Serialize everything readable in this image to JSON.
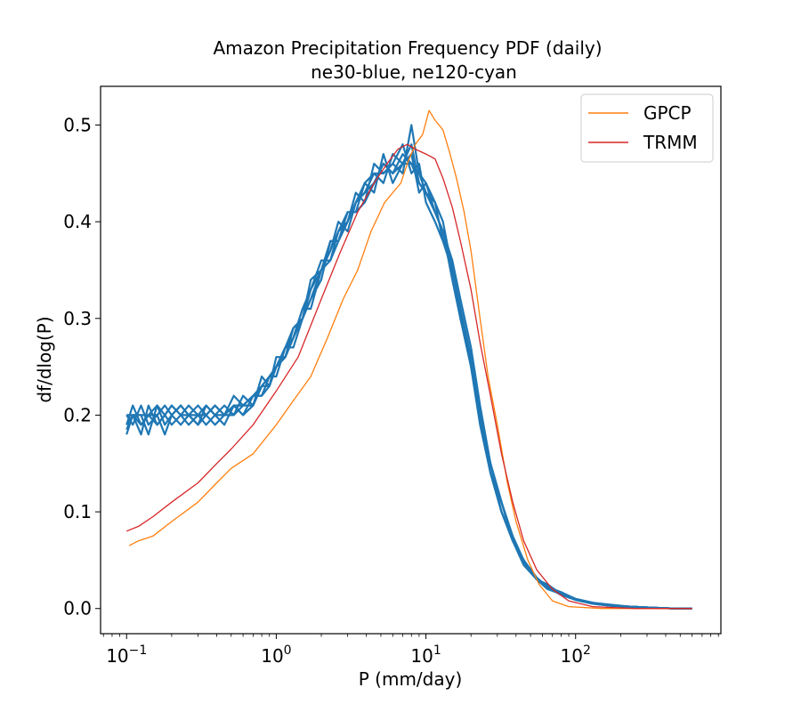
{
  "chart_data": {
    "type": "line",
    "title": "Amazon Precipitation Frequency PDF (daily)",
    "subtitle": "ne30-blue, ne120-cyan",
    "xlabel": "P (mm/day)",
    "ylabel": "df/dlog(P)",
    "xscale": "log",
    "xlim": [
      0.067,
      935
    ],
    "ylim": [
      -0.026,
      0.54
    ],
    "grid": false,
    "legend_position": "top-right",
    "x_ticks": [
      {
        "value": 0.1,
        "base": "10",
        "exp": "−1"
      },
      {
        "value": 1,
        "base": "10",
        "exp": "0"
      },
      {
        "value": 10,
        "base": "10",
        "exp": "1"
      },
      {
        "value": 100,
        "base": "10",
        "exp": "2"
      }
    ],
    "y_ticks": [
      {
        "value": 0.0,
        "label": "0.0"
      },
      {
        "value": 0.1,
        "label": "0.1"
      },
      {
        "value": 0.2,
        "label": "0.2"
      },
      {
        "value": 0.3,
        "label": "0.3"
      },
      {
        "value": 0.4,
        "label": "0.4"
      },
      {
        "value": 0.5,
        "label": "0.5"
      }
    ],
    "legend": [
      {
        "name": "GPCP",
        "color": "#ff7f0e"
      },
      {
        "name": "TRMM",
        "color": "#d62728"
      }
    ],
    "series": [
      {
        "name": "GPCP",
        "color": "#ff7f0e",
        "in_legend": true,
        "x": [
          0.104,
          0.12,
          0.15,
          0.2,
          0.3,
          0.4,
          0.5,
          0.7,
          1.0,
          1.3,
          1.7,
          2.2,
          2.8,
          3.5,
          4.3,
          5.3,
          6.0,
          6.8,
          7.5,
          8.5,
          9.5,
          10.5,
          11.5,
          13,
          14.5,
          16,
          18,
          20,
          23,
          26,
          30,
          35,
          40,
          48,
          57,
          70,
          90,
          150,
          300,
          600
        ],
        "y": [
          0.065,
          0.07,
          0.075,
          0.09,
          0.11,
          0.13,
          0.145,
          0.16,
          0.19,
          0.215,
          0.24,
          0.28,
          0.32,
          0.35,
          0.39,
          0.42,
          0.43,
          0.44,
          0.46,
          0.48,
          0.49,
          0.515,
          0.505,
          0.495,
          0.47,
          0.445,
          0.41,
          0.37,
          0.3,
          0.24,
          0.19,
          0.13,
          0.09,
          0.05,
          0.025,
          0.008,
          0.002,
          0.0,
          0.0,
          0.0
        ]
      },
      {
        "name": "TRMM",
        "color": "#d62728",
        "in_legend": true,
        "x": [
          0.1,
          0.12,
          0.15,
          0.2,
          0.3,
          0.4,
          0.5,
          0.7,
          1.0,
          1.4,
          2.0,
          2.7,
          3.5,
          4.5,
          5.5,
          6.5,
          7.5,
          8.5,
          10,
          11.5,
          13,
          15,
          17,
          20,
          23,
          27,
          32,
          38,
          45,
          55,
          70,
          90,
          130,
          250,
          600
        ],
        "y": [
          0.08,
          0.085,
          0.095,
          0.11,
          0.13,
          0.15,
          0.165,
          0.19,
          0.225,
          0.26,
          0.32,
          0.37,
          0.41,
          0.44,
          0.46,
          0.475,
          0.48,
          0.475,
          0.47,
          0.465,
          0.445,
          0.415,
          0.38,
          0.33,
          0.275,
          0.22,
          0.16,
          0.11,
          0.07,
          0.04,
          0.02,
          0.008,
          0.002,
          0.0,
          0.0
        ]
      }
    ],
    "ensemble": {
      "color": "#1f77b4",
      "x": [
        0.1,
        0.11,
        0.125,
        0.14,
        0.16,
        0.18,
        0.2,
        0.23,
        0.26,
        0.3,
        0.34,
        0.39,
        0.45,
        0.52,
        0.6,
        0.7,
        0.8,
        0.9,
        1.0,
        1.15,
        1.3,
        1.5,
        1.7,
        2.0,
        2.3,
        2.6,
        3.0,
        3.4,
        3.9,
        4.5,
        5.2,
        6.0,
        7.0,
        8.0,
        9.0,
        10.0,
        11.5,
        13,
        15,
        17,
        20,
        23,
        27,
        32,
        38,
        45,
        55,
        65,
        80,
        100,
        130,
        170,
        230,
        320,
        450,
        600
      ],
      "members": [
        [
          0.19,
          0.21,
          0.19,
          0.2,
          0.21,
          0.19,
          0.2,
          0.21,
          0.2,
          0.19,
          0.2,
          0.21,
          0.2,
          0.22,
          0.21,
          0.22,
          0.23,
          0.24,
          0.25,
          0.27,
          0.28,
          0.31,
          0.33,
          0.35,
          0.37,
          0.39,
          0.4,
          0.42,
          0.43,
          0.44,
          0.46,
          0.45,
          0.47,
          0.46,
          0.45,
          0.44,
          0.42,
          0.4,
          0.35,
          0.31,
          0.26,
          0.2,
          0.15,
          0.11,
          0.07,
          0.05,
          0.03,
          0.025,
          0.015,
          0.01,
          0.006,
          0.003,
          0.002,
          0.001,
          0.0,
          0.0
        ],
        [
          0.18,
          0.2,
          0.18,
          0.21,
          0.19,
          0.2,
          0.19,
          0.2,
          0.21,
          0.2,
          0.19,
          0.2,
          0.21,
          0.2,
          0.22,
          0.21,
          0.23,
          0.23,
          0.25,
          0.26,
          0.29,
          0.3,
          0.33,
          0.36,
          0.36,
          0.39,
          0.41,
          0.41,
          0.44,
          0.45,
          0.44,
          0.47,
          0.46,
          0.48,
          0.44,
          0.43,
          0.41,
          0.39,
          0.34,
          0.3,
          0.25,
          0.19,
          0.14,
          0.1,
          0.07,
          0.045,
          0.03,
          0.02,
          0.015,
          0.009,
          0.005,
          0.003,
          0.002,
          0.001,
          0.0,
          0.0
        ],
        [
          0.2,
          0.19,
          0.21,
          0.19,
          0.2,
          0.21,
          0.2,
          0.19,
          0.2,
          0.21,
          0.2,
          0.19,
          0.2,
          0.21,
          0.2,
          0.22,
          0.22,
          0.24,
          0.24,
          0.27,
          0.27,
          0.3,
          0.32,
          0.34,
          0.38,
          0.38,
          0.4,
          0.43,
          0.42,
          0.46,
          0.45,
          0.46,
          0.48,
          0.45,
          0.46,
          0.42,
          0.4,
          0.38,
          0.36,
          0.32,
          0.27,
          0.21,
          0.15,
          0.11,
          0.075,
          0.05,
          0.032,
          0.022,
          0.017,
          0.01,
          0.006,
          0.004,
          0.002,
          0.001,
          0.0,
          0.0
        ],
        [
          0.19,
          0.2,
          0.2,
          0.18,
          0.21,
          0.2,
          0.21,
          0.2,
          0.19,
          0.2,
          0.21,
          0.2,
          0.19,
          0.21,
          0.21,
          0.21,
          0.23,
          0.24,
          0.25,
          0.26,
          0.28,
          0.31,
          0.31,
          0.35,
          0.37,
          0.4,
          0.39,
          0.42,
          0.44,
          0.43,
          0.47,
          0.44,
          0.46,
          0.47,
          0.43,
          0.44,
          0.41,
          0.39,
          0.35,
          0.31,
          0.26,
          0.2,
          0.14,
          0.1,
          0.072,
          0.048,
          0.03,
          0.024,
          0.016,
          0.009,
          0.005,
          0.003,
          0.002,
          0.001,
          0.0,
          0.0
        ],
        [
          0.2,
          0.2,
          0.19,
          0.2,
          0.2,
          0.18,
          0.2,
          0.21,
          0.2,
          0.2,
          0.2,
          0.21,
          0.2,
          0.2,
          0.21,
          0.22,
          0.22,
          0.23,
          0.26,
          0.26,
          0.28,
          0.3,
          0.34,
          0.35,
          0.36,
          0.38,
          0.4,
          0.42,
          0.43,
          0.45,
          0.45,
          0.46,
          0.45,
          0.5,
          0.45,
          0.43,
          0.42,
          0.38,
          0.35,
          0.31,
          0.25,
          0.2,
          0.15,
          0.1,
          0.07,
          0.05,
          0.03,
          0.023,
          0.016,
          0.01,
          0.006,
          0.003,
          0.002,
          0.001,
          0.0,
          0.0
        ],
        [
          0.185,
          0.2,
          0.2,
          0.2,
          0.19,
          0.2,
          0.21,
          0.2,
          0.2,
          0.19,
          0.21,
          0.2,
          0.2,
          0.21,
          0.2,
          0.21,
          0.24,
          0.23,
          0.25,
          0.27,
          0.29,
          0.3,
          0.32,
          0.35,
          0.38,
          0.38,
          0.41,
          0.41,
          0.42,
          0.44,
          0.46,
          0.45,
          0.46,
          0.46,
          0.44,
          0.43,
          0.41,
          0.39,
          0.36,
          0.3,
          0.26,
          0.2,
          0.15,
          0.11,
          0.07,
          0.05,
          0.03,
          0.022,
          0.014,
          0.009,
          0.005,
          0.003,
          0.002,
          0.001,
          0.0,
          0.0
        ]
      ]
    }
  }
}
